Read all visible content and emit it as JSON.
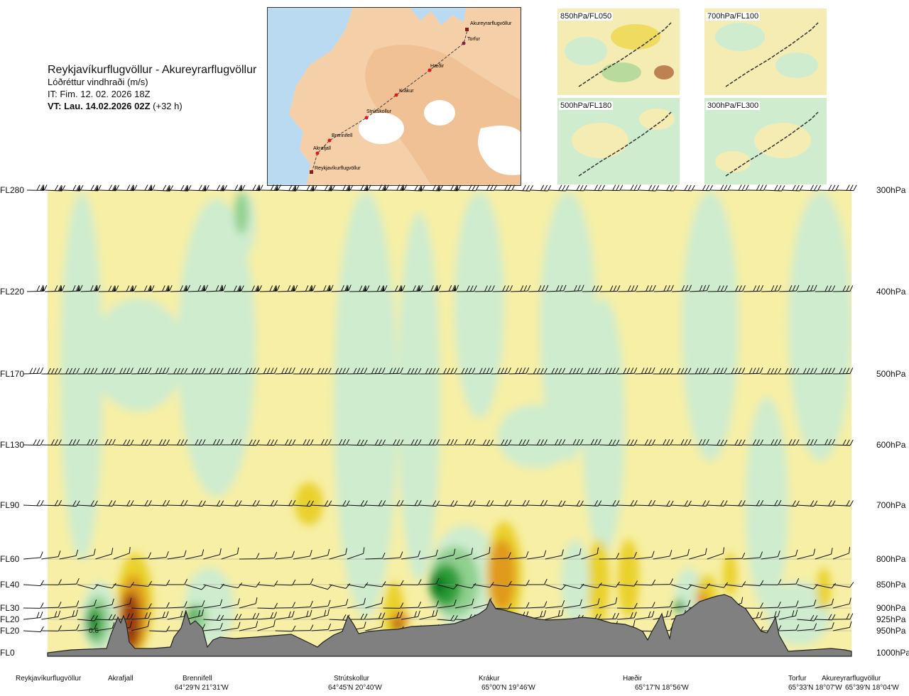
{
  "header": {
    "title": "Reykjavíkurflugvöllur - Akureyrarflugvöllur",
    "subtitle": "Lóðréttur vindhraði (m/s)",
    "issue_time": "IT: Fim. 12. 02. 2026 18Z",
    "valid_label": "VT: Lau. 14.02.2026 02Z",
    "valid_offset": "(+32 h)"
  },
  "map": {
    "places": [
      "Akureyrarflugvöllur",
      "Torfur",
      "Hæðir",
      "Krákur",
      "Strútskollur",
      "Brennifell",
      "Akrafjall",
      "Reykjavíkurflugvöllur"
    ],
    "colors": {
      "sea": "#b9daf0",
      "land": "#f3c9a4",
      "ice": "#ffffff",
      "route": "#444444",
      "marker": "#e8161b"
    }
  },
  "thumbnails": [
    {
      "label": "850hPa/FL050"
    },
    {
      "label": "700hPa/FL100"
    },
    {
      "label": "500hPa/FL180"
    },
    {
      "label": "300hPa/FL300"
    }
  ],
  "chart_data": {
    "type": "heatmap",
    "title": "Reykjavíkurflugvöllur - Akureyrarflugvöllur",
    "variable": "Lóðréttur vindhraði (m/s)",
    "left_axis_labels": [
      "FL280",
      "FL220",
      "FL170",
      "FL130",
      "FL90",
      "FL60",
      "FL40",
      "FL30",
      "FL20",
      "FL20",
      "FL0"
    ],
    "right_axis_labels": [
      "300hPa",
      "400hPa",
      "500hPa",
      "600hPa",
      "700hPa",
      "800hPa",
      "850hPa",
      "900hPa",
      "925hPa",
      "950hPa",
      "1000hPa"
    ],
    "pressure_levels_hpa": [
      300,
      400,
      500,
      600,
      700,
      800,
      850,
      900,
      925,
      950,
      1000
    ],
    "waypoints": [
      {
        "name": "Reykjavíkurflugvöllur",
        "coord": ""
      },
      {
        "name": "Akrafjall",
        "coord": ""
      },
      {
        "name": "Brennifell",
        "coord": "64°29'N 21°31'W"
      },
      {
        "name": "Strútskollur",
        "coord": "64°45'N 20°40'W"
      },
      {
        "name": "Krákur",
        "coord": "65°00'N 19°46'W"
      },
      {
        "name": "Hæðir",
        "coord": "65°17'N 18°56'W"
      },
      {
        "name": "Torfur",
        "coord": "65°33'N 18°07'W"
      },
      {
        "name": "Akureyrarflugvöllur",
        "coord": "65°39'N 18°04'W"
      }
    ],
    "annotations": [
      "0.6"
    ],
    "colors": {
      "strong_down_1": "#cfeccf",
      "strong_down_2": "#8fd08f",
      "strong_down_3": "#2f9e3a",
      "strong_down_4": "#0a7d20",
      "strong_up_1": "#f7efa5",
      "strong_up_2": "#e9d12a",
      "strong_up_3": "#e09a1e",
      "strong_up_4": "#9a3b10",
      "neutral": "#ffffe6",
      "terrain": "#808080"
    }
  }
}
